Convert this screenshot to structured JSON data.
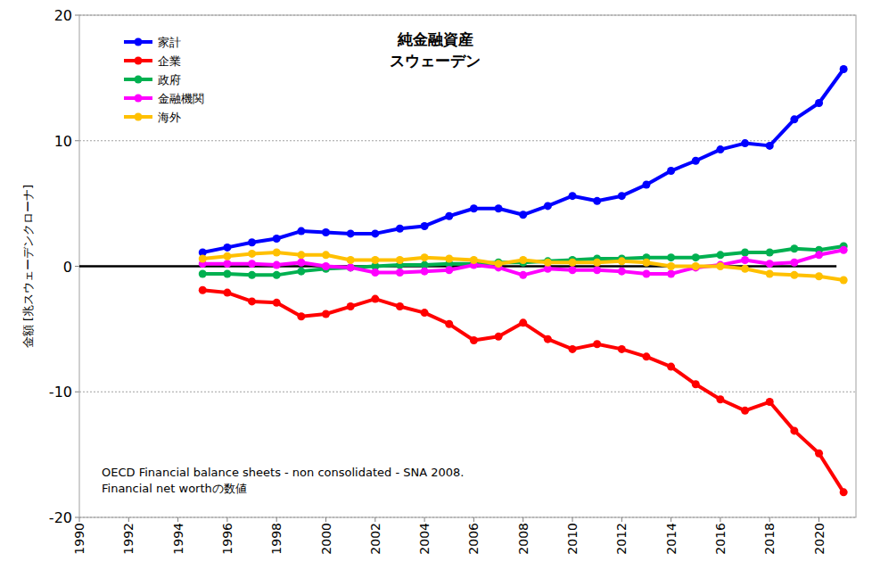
{
  "chart_data": {
    "type": "line",
    "title": "純金融資産",
    "subtitle": "スウェーデン",
    "y_label": "金額 [兆スウェーデンクローナ]",
    "annotations": [
      "OECD Financial balance sheets - non consolidated - SNA 2008.",
      "Financial net worthの数値"
    ],
    "x": [
      1995,
      1996,
      1997,
      1998,
      1999,
      2000,
      2001,
      2002,
      2003,
      2004,
      2005,
      2006,
      2007,
      2008,
      2009,
      2010,
      2011,
      2012,
      2013,
      2014,
      2015,
      2016,
      2017,
      2018,
      2019,
      2020,
      2021
    ],
    "series": [
      {
        "name": "家計",
        "color": "#0000ff",
        "marker": "circle",
        "line_style": "solid",
        "values": [
          1.1,
          1.5,
          1.9,
          2.2,
          2.8,
          2.7,
          2.6,
          2.6,
          3.0,
          3.2,
          4.0,
          4.6,
          4.6,
          4.1,
          4.8,
          5.6,
          5.2,
          5.6,
          6.5,
          7.6,
          8.4,
          9.3,
          9.8,
          9.6,
          11.7,
          13.0,
          15.7
        ]
      },
      {
        "name": "企業",
        "color": "#ff0000",
        "marker": "circle",
        "line_style": "solid",
        "values": [
          -1.9,
          -2.1,
          -2.8,
          -2.9,
          -4.0,
          -3.8,
          -3.2,
          -2.6,
          -3.2,
          -3.7,
          -4.6,
          -5.9,
          -5.6,
          -4.5,
          -5.8,
          -6.6,
          -6.2,
          -6.6,
          -7.2,
          -8.0,
          -9.4,
          -10.6,
          -11.5,
          -10.8,
          -13.1,
          -14.9,
          -18.0
        ]
      },
      {
        "name": "政府",
        "color": "#00b050",
        "marker": "circle",
        "line_style": "solid",
        "values": [
          -0.6,
          -0.6,
          -0.7,
          -0.7,
          -0.4,
          -0.2,
          -0.1,
          0.0,
          0.1,
          0.1,
          0.2,
          0.2,
          0.3,
          0.3,
          0.4,
          0.5,
          0.6,
          0.6,
          0.7,
          0.7,
          0.7,
          0.9,
          1.1,
          1.1,
          1.4,
          1.3,
          1.6
        ]
      },
      {
        "name": "金融機関",
        "color": "#ff00ff",
        "marker": "circle",
        "line_style": "solid",
        "values": [
          0.2,
          0.2,
          0.2,
          0.1,
          0.3,
          0.0,
          -0.1,
          -0.5,
          -0.5,
          -0.4,
          -0.3,
          0.1,
          -0.1,
          -0.7,
          -0.2,
          -0.3,
          -0.3,
          -0.4,
          -0.6,
          -0.6,
          -0.1,
          0.1,
          0.5,
          0.2,
          0.3,
          0.9,
          1.3
        ]
      },
      {
        "name": "海外",
        "color": "#ffc000",
        "marker": "circle",
        "line_style": "solid",
        "values": [
          0.6,
          0.8,
          1.0,
          1.1,
          0.9,
          0.9,
          0.5,
          0.5,
          0.5,
          0.7,
          0.6,
          0.5,
          0.2,
          0.5,
          0.3,
          0.3,
          0.3,
          0.4,
          0.3,
          0.0,
          0.0,
          0.0,
          -0.2,
          -0.6,
          -0.7,
          -0.8,
          -1.1
        ]
      }
    ],
    "xlim": [
      1990,
      2021.5
    ],
    "xticks": [
      1990,
      1992,
      1994,
      1996,
      1998,
      2000,
      2002,
      2004,
      2006,
      2008,
      2010,
      2012,
      2014,
      2016,
      2018,
      2020
    ],
    "ylim": [
      -20,
      20
    ],
    "yticks": [
      -20,
      -10,
      0,
      10,
      20
    ],
    "grid": true,
    "legend": "top-left"
  }
}
